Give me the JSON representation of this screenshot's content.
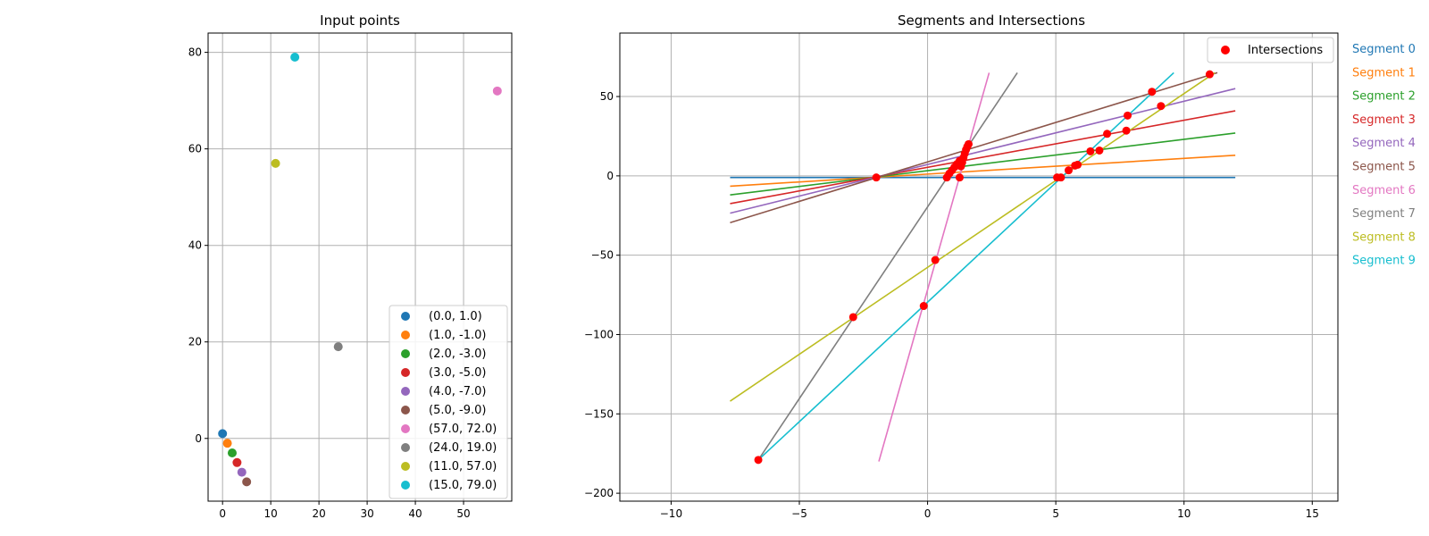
{
  "chart_data": [
    {
      "type": "scatter",
      "title": "Input points",
      "xlabel": "",
      "ylabel": "",
      "xlim": [
        -3,
        60
      ],
      "ylim": [
        -13,
        84
      ],
      "xticks": [
        0,
        10,
        20,
        30,
        40,
        50
      ],
      "yticks": [
        0,
        20,
        40,
        60,
        80
      ],
      "grid": true,
      "legend_position": "lower-right",
      "series": [
        {
          "name": "(0.0, 1.0)",
          "x": 0.0,
          "y": 1.0,
          "color": "#1f77b4"
        },
        {
          "name": "(1.0, -1.0)",
          "x": 1.0,
          "y": -1.0,
          "color": "#ff7f0e"
        },
        {
          "name": "(2.0, -3.0)",
          "x": 2.0,
          "y": -3.0,
          "color": "#2ca02c"
        },
        {
          "name": "(3.0, -5.0)",
          "x": 3.0,
          "y": -5.0,
          "color": "#d62728"
        },
        {
          "name": "(4.0, -7.0)",
          "x": 4.0,
          "y": -7.0,
          "color": "#9467bd"
        },
        {
          "name": "(5.0, -9.0)",
          "x": 5.0,
          "y": -9.0,
          "color": "#8c564b"
        },
        {
          "name": "(57.0, 72.0)",
          "x": 57.0,
          "y": 72.0,
          "color": "#e377c2"
        },
        {
          "name": "(24.0, 19.0)",
          "x": 24.0,
          "y": 19.0,
          "color": "#7f7f7f"
        },
        {
          "name": "(11.0, 57.0)",
          "x": 11.0,
          "y": 57.0,
          "color": "#bcbd22"
        },
        {
          "name": "(15.0, 79.0)",
          "x": 15.0,
          "y": 79.0,
          "color": "#17becf"
        }
      ]
    },
    {
      "type": "line",
      "title": "Segments and Intersections",
      "xlabel": "",
      "ylabel": "",
      "xlim": [
        -12,
        16
      ],
      "ylim": [
        -205,
        90
      ],
      "xticks": [
        -10,
        -5,
        0,
        5,
        10,
        15
      ],
      "yticks": [
        -200,
        -150,
        -100,
        -50,
        0,
        50
      ],
      "grid": true,
      "legend_position": "upper-right",
      "segments": [
        {
          "name": "Segment 0",
          "color": "#1f77b4",
          "points": [
            [
              -7.7,
              -1
            ],
            [
              12,
              -1
            ]
          ]
        },
        {
          "name": "Segment 1",
          "color": "#ff7f0e",
          "points": [
            [
              -7.7,
              -6.5
            ],
            [
              12,
              13
            ]
          ]
        },
        {
          "name": "Segment 2",
          "color": "#2ca02c",
          "points": [
            [
              -7.7,
              -12
            ],
            [
              12,
              27
            ]
          ]
        },
        {
          "name": "Segment 3",
          "color": "#d62728",
          "points": [
            [
              -7.7,
              -17.5
            ],
            [
              12,
              41
            ]
          ]
        },
        {
          "name": "Segment 4",
          "color": "#9467bd",
          "points": [
            [
              -7.7,
              -23.5
            ],
            [
              12,
              55
            ]
          ]
        },
        {
          "name": "Segment 5",
          "color": "#8c564b",
          "points": [
            [
              -7.7,
              -29.5
            ],
            [
              11.3,
              65
            ]
          ]
        },
        {
          "name": "Segment 6",
          "color": "#e377c2",
          "points": [
            [
              -1.9,
              -180
            ],
            [
              2.4,
              65
            ]
          ]
        },
        {
          "name": "Segment 7",
          "color": "#7f7f7f",
          "points": [
            [
              -6.6,
              -179
            ],
            [
              3.5,
              65
            ]
          ]
        },
        {
          "name": "Segment 8",
          "color": "#bcbd22",
          "points": [
            [
              -7.7,
              -142
            ],
            [
              11.2,
              65
            ]
          ]
        },
        {
          "name": "Segment 9",
          "color": "#17becf",
          "points": [
            [
              -6.6,
              -179
            ],
            [
              9.6,
              65
            ]
          ]
        }
      ],
      "intersections": {
        "name": "Intersections",
        "color": "#ff0000",
        "points": [
          [
            -2,
            -1
          ],
          [
            0.75,
            -1
          ],
          [
            1.25,
            -1
          ],
          [
            5.05,
            -1
          ],
          [
            5.2,
            -1
          ],
          [
            0.85,
            1.5
          ],
          [
            0.95,
            3.5
          ],
          [
            1.05,
            5.5
          ],
          [
            1.15,
            7.5
          ],
          [
            1.25,
            9.5
          ],
          [
            1.3,
            6
          ],
          [
            1.35,
            8.5
          ],
          [
            1.4,
            11.5
          ],
          [
            1.45,
            14
          ],
          [
            1.5,
            16.5
          ],
          [
            1.55,
            18.5
          ],
          [
            1.6,
            20
          ],
          [
            5.5,
            3.5
          ],
          [
            5.75,
            6.5
          ],
          [
            5.85,
            7
          ],
          [
            6.35,
            15.5
          ],
          [
            6.7,
            16
          ],
          [
            7.0,
            26.5
          ],
          [
            7.75,
            28.5
          ],
          [
            7.8,
            38
          ],
          [
            8.75,
            53
          ],
          [
            9.1,
            44
          ],
          [
            11.0,
            64
          ],
          [
            0.3,
            -53
          ],
          [
            -0.15,
            -82
          ],
          [
            -2.9,
            -89
          ],
          [
            -6.6,
            -179
          ]
        ]
      }
    }
  ]
}
